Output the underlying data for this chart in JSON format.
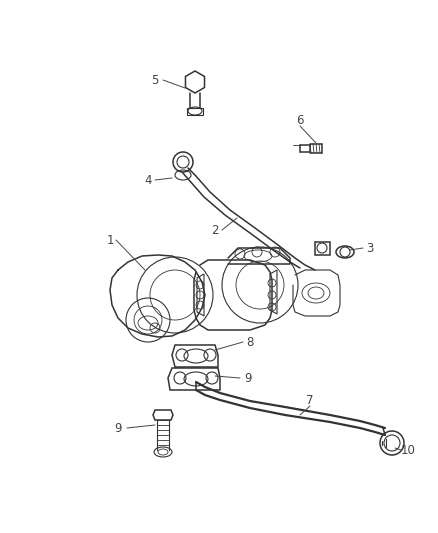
{
  "bg_color": "#ffffff",
  "line_color": "#333333",
  "label_color": "#444444",
  "figsize": [
    4.38,
    5.33
  ],
  "dpi": 100,
  "lw_main": 1.1,
  "lw_med": 0.8,
  "lw_thin": 0.6,
  "font_size": 8.5
}
